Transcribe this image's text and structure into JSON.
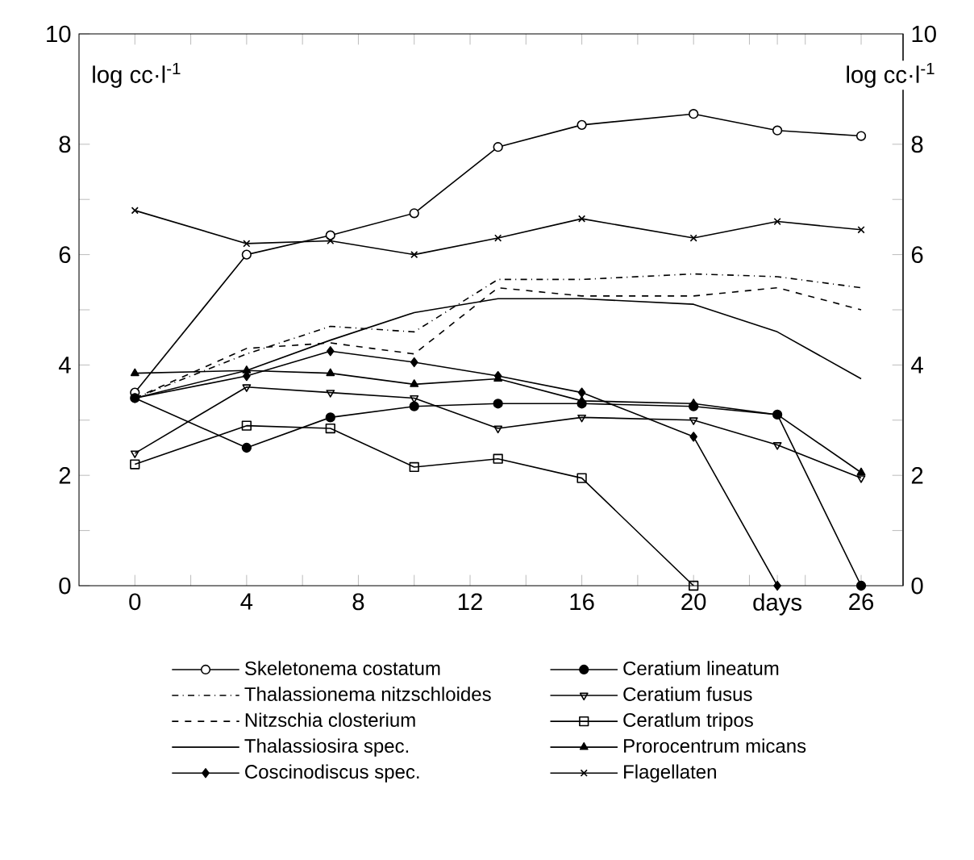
{
  "chart_data": {
    "type": "line",
    "ylabel": "log cc·l$^{-1}$",
    "y2label": "log cc·l$^{-1}$",
    "x": [
      0,
      4,
      7,
      10,
      13,
      16,
      20,
      23,
      26
    ],
    "xlim": [
      -2,
      27.5
    ],
    "xticks": [
      0,
      {
        "value": 2,
        "label": null
      },
      4,
      {
        "value": 6,
        "label": null
      },
      8,
      {
        "value": 10,
        "label": null
      },
      12,
      {
        "value": 14,
        "label": null
      },
      16,
      {
        "value": 18,
        "label": null
      },
      20,
      {
        "value": 22,
        "label": null
      },
      {
        "value": 23,
        "label": "days"
      },
      {
        "value": 24,
        "label": null
      },
      26
    ],
    "ylim": [
      0,
      10
    ],
    "yticks": [
      0,
      {
        "value": 1,
        "label": null
      },
      2,
      {
        "value": 3,
        "label": null
      },
      4,
      {
        "value": 5,
        "label": null
      },
      6,
      {
        "value": 7,
        "label": null
      },
      8,
      10
    ],
    "y2lim": [
      0,
      10
    ],
    "y2ticks": [
      0,
      {
        "value": 1,
        "label": null
      },
      2,
      {
        "value": 3,
        "label": null
      },
      4,
      {
        "value": 5,
        "label": null
      },
      6,
      {
        "value": 7,
        "label": null
      },
      8,
      10
    ],
    "legend": "bottom",
    "series": [
      {
        "name": "Skeletonema costatum",
        "color": "#000000",
        "marker": "circle",
        "line_style": "solid",
        "values": [
          3.5,
          6.0,
          6.35,
          6.75,
          7.95,
          8.35,
          8.55,
          8.25,
          8.15
        ]
      },
      {
        "name": "Thalassionema nitzschloides",
        "color": "#000000",
        "marker": "none",
        "line_style": "dashdot",
        "values": [
          3.4,
          4.2,
          4.7,
          4.6,
          5.55,
          5.55,
          5.65,
          5.6,
          5.4
        ]
      },
      {
        "name": "Nitzschia closterium",
        "color": "#000000",
        "marker": "none",
        "line_style": "dashed",
        "values": [
          3.4,
          4.3,
          4.4,
          4.2,
          5.4,
          5.25,
          5.25,
          5.4,
          5.0
        ]
      },
      {
        "name": "Thalassiosira spec.",
        "color": "#000000",
        "marker": "none",
        "line_style": "solid",
        "values": [
          3.4,
          3.9,
          4.45,
          4.95,
          5.2,
          5.2,
          5.1,
          4.6,
          3.75
        ]
      },
      {
        "name": "Coscinodiscus spec.",
        "color": "#000000",
        "marker": "diamond",
        "line_style": "solid",
        "values": [
          3.4,
          3.8,
          4.25,
          4.05,
          3.8,
          3.5,
          2.7,
          0,
          null
        ]
      },
      {
        "name": "Ceratium lineatum",
        "color": "#000000",
        "marker": "filled circle",
        "line_style": "solid",
        "values": [
          3.4,
          2.5,
          3.05,
          3.25,
          3.3,
          3.3,
          3.25,
          3.1,
          0
        ]
      },
      {
        "name": "Ceratium fusus",
        "color": "#000000",
        "marker": "triangle down",
        "line_style": "solid",
        "values": [
          2.4,
          3.6,
          3.5,
          3.4,
          2.85,
          3.05,
          3.0,
          2.55,
          1.95
        ]
      },
      {
        "name": "Ceratlum tripos",
        "color": "#000000",
        "marker": "square",
        "line_style": "solid",
        "values": [
          2.2,
          2.9,
          2.85,
          2.15,
          2.3,
          1.95,
          0,
          null,
          null
        ]
      },
      {
        "name": "Prorocentrum micans",
        "color": "#000000",
        "marker": "triangle",
        "line_style": "solid",
        "values": [
          3.85,
          3.9,
          3.85,
          3.65,
          3.75,
          3.35,
          3.3,
          3.1,
          2.05
        ]
      },
      {
        "name": "Flagellaten",
        "color": "#000000",
        "marker": "cross",
        "line_style": "solid",
        "values": [
          6.8,
          6.2,
          6.25,
          6.0,
          6.3,
          6.65,
          6.3,
          6.6,
          6.45
        ]
      }
    ]
  }
}
